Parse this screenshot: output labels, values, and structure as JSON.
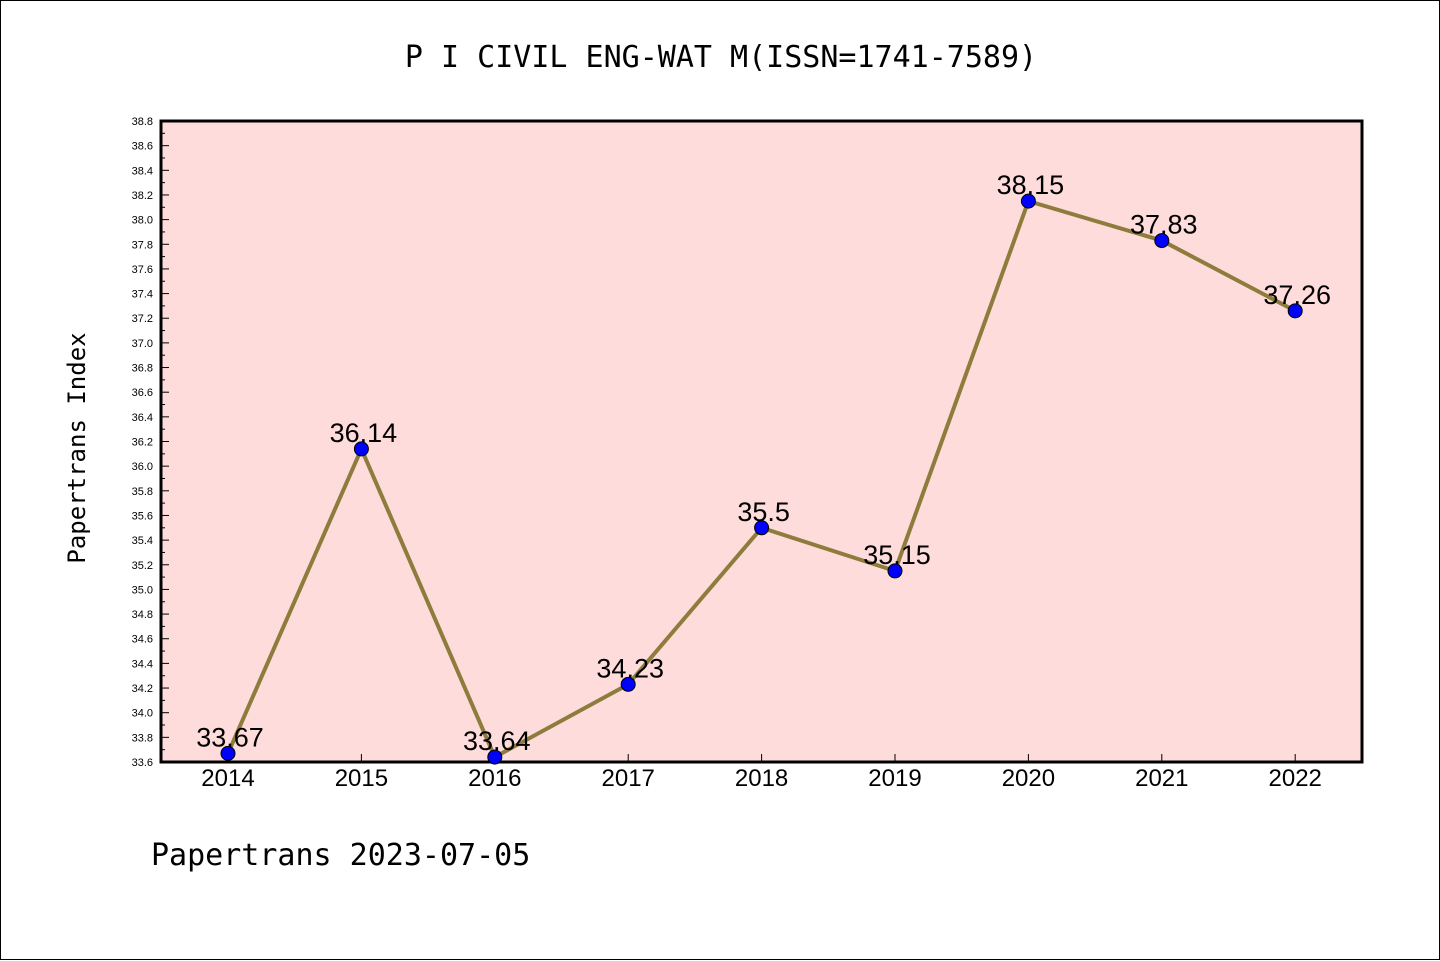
{
  "chart_data": {
    "type": "line",
    "title": "P I CIVIL ENG-WAT M(ISSN=1741-7589)",
    "ylabel": "Papertrans Index",
    "xlabel": "",
    "footer": "Papertrans 2023-07-05",
    "categories": [
      "2014",
      "2015",
      "2016",
      "2017",
      "2018",
      "2019",
      "2020",
      "2021",
      "2022"
    ],
    "values": [
      33.67,
      36.14,
      33.64,
      34.23,
      35.5,
      35.15,
      38.15,
      37.83,
      37.26
    ],
    "data_labels": [
      "33.67",
      "36.14",
      "33.64",
      "34.23",
      "35.5",
      "35.15",
      "38.15",
      "37.83",
      "37.26"
    ],
    "ylim": [
      33.6,
      38.8
    ],
    "y_ticks": [
      "33.6",
      "33.8",
      "34.0",
      "34.2",
      "34.4",
      "34.6",
      "34.8",
      "35.0",
      "35.2",
      "35.4",
      "35.6",
      "35.8",
      "36.0",
      "36.2",
      "36.4",
      "36.6",
      "36.8",
      "37.0",
      "37.2",
      "37.4",
      "37.6",
      "37.8",
      "38.0",
      "38.2",
      "38.4",
      "38.6",
      "38.8"
    ],
    "grid": false,
    "colors": {
      "plot_background": "#fddcdb",
      "line": "#8e7c3c",
      "marker": "#0000ff"
    }
  }
}
